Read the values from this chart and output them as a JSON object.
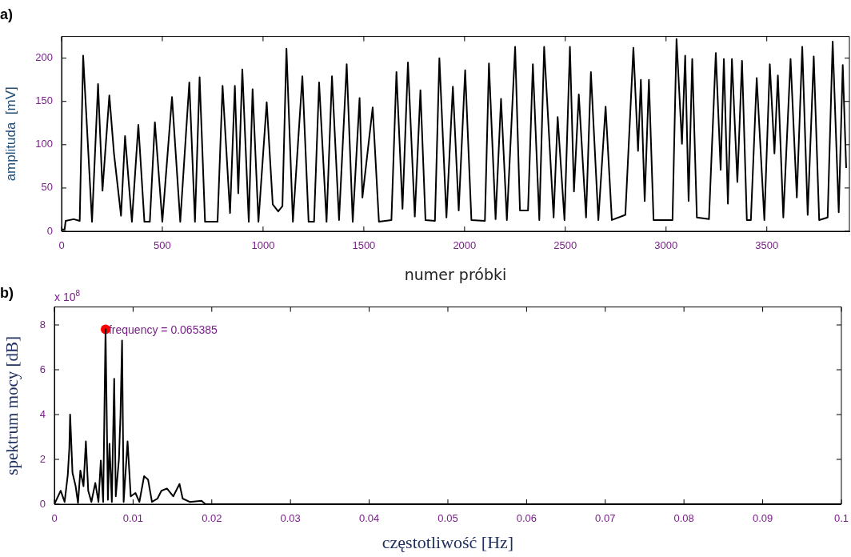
{
  "chart_data": [
    {
      "type": "line",
      "title": "a)",
      "xlabel": "numer próbki",
      "ylabel": "amplituda  [mV]",
      "marker": "none",
      "xlim": [
        0,
        3910
      ],
      "ylim": [
        0,
        225
      ],
      "xticks": [
        0,
        500,
        1000,
        1500,
        2000,
        2500,
        3000,
        3500
      ],
      "yticks": [
        0,
        50,
        100,
        150,
        200
      ],
      "series": [
        {
          "color": "#000000",
          "x": [
            0,
            15,
            20,
            60,
            90,
            107,
            151,
            181,
            203,
            237,
            260,
            295,
            315,
            349,
            381,
            411,
            438,
            463,
            500,
            548,
            589,
            634,
            662,
            685,
            712,
            774,
            799,
            836,
            860,
            877,
            897,
            929,
            948,
            977,
            1018,
            1048,
            1075,
            1096,
            1116,
            1148,
            1195,
            1226,
            1253,
            1278,
            1315,
            1342,
            1377,
            1415,
            1445,
            1479,
            1493,
            1544,
            1575,
            1637,
            1662,
            1692,
            1719,
            1753,
            1781,
            1806,
            1853,
            1875,
            1910,
            1942,
            1971,
            2003,
            2034,
            2101,
            2121,
            2154,
            2181,
            2210,
            2251,
            2275,
            2315,
            2339,
            2371,
            2395,
            2442,
            2462,
            2496,
            2523,
            2543,
            2567,
            2603,
            2627,
            2664,
            2700,
            2731,
            2798,
            2838,
            2861,
            2875,
            2894,
            2915,
            2938,
            3032,
            3052,
            3079,
            3095,
            3112,
            3130,
            3153,
            3213,
            3247,
            3271,
            3287,
            3307,
            3327,
            3354,
            3377,
            3401,
            3421,
            3450,
            3488,
            3515,
            3538,
            3555,
            3582,
            3618,
            3649,
            3676,
            3703,
            3733,
            3760,
            3802,
            3827,
            3857,
            3877,
            3894
          ],
          "values": [
            2,
            2,
            12,
            14,
            12,
            203,
            11,
            170,
            47,
            157,
            90,
            18,
            110,
            11,
            123,
            11,
            11,
            126,
            11,
            155,
            11,
            172,
            11,
            178,
            11,
            11,
            168,
            21,
            168,
            44,
            187,
            11,
            164,
            11,
            149,
            31,
            23,
            29,
            211,
            11,
            179,
            11,
            11,
            172,
            11,
            179,
            13,
            193,
            11,
            154,
            39,
            143,
            11,
            13,
            184,
            26,
            195,
            17,
            163,
            13,
            12,
            200,
            16,
            167,
            24,
            186,
            13,
            12,
            194,
            14,
            153,
            13,
            213,
            24,
            24,
            193,
            13,
            213,
            16,
            132,
            13,
            213,
            46,
            158,
            16,
            184,
            13,
            144,
            13,
            19,
            212,
            93,
            175,
            35,
            175,
            13,
            13,
            222,
            101,
            203,
            35,
            199,
            16,
            14,
            206,
            71,
            199,
            32,
            199,
            57,
            197,
            13,
            13,
            177,
            13,
            193,
            90,
            180,
            16,
            199,
            39,
            213,
            19,
            202,
            13,
            16,
            219,
            22,
            192,
            73
          ]
        }
      ]
    },
    {
      "type": "line",
      "title": "b)",
      "xlabel": "częstotliwość [Hz]",
      "ylabel": "spektrum mocy [dB]",
      "marker": "none",
      "xlim": [
        0,
        0.1
      ],
      "ylim": [
        0,
        8.8
      ],
      "xticks": [
        0,
        0.01,
        0.02,
        0.03,
        0.04,
        0.05,
        0.06,
        0.07,
        0.08,
        0.09,
        0.1
      ],
      "yticks": [
        0,
        2,
        4,
        6,
        8
      ],
      "annotations": [
        "x 10$^{8}$",
        {
          "text": "frequency = 0.065385",
          "x": 0.0065,
          "y": 7.8
        }
      ],
      "series": [
        {
          "color": "#000000",
          "x": [
            0,
            0.0008,
            0.0013,
            0.0017,
            0.0019,
            0.002,
            0.0023,
            0.0027,
            0.003,
            0.0033,
            0.0037,
            0.004,
            0.0043,
            0.0047,
            0.0052,
            0.0056,
            0.0059,
            0.0062,
            0.0065,
            0.0068,
            0.007,
            0.0073,
            0.0076,
            0.0078,
            0.0082,
            0.0084,
            0.0086,
            0.0088,
            0.0093,
            0.0097,
            0.0103,
            0.0108,
            0.0114,
            0.0119,
            0.0124,
            0.0131,
            0.0136,
            0.0143,
            0.0151,
            0.0159,
            0.0163,
            0.0172,
            0.0187,
            0.0192,
            0.03,
            0.06,
            0.1
          ],
          "values": [
            0,
            0.6,
            0.1,
            1.3,
            2.5,
            4.0,
            1.4,
            0.8,
            0.05,
            1.5,
            0.8,
            2.8,
            0.6,
            0.1,
            0.95,
            0.1,
            1.95,
            0.1,
            7.8,
            0.2,
            2.7,
            0.1,
            5.6,
            0.35,
            2.0,
            4.0,
            7.3,
            0.1,
            2.8,
            0.35,
            0.5,
            0.1,
            1.25,
            1.1,
            0.1,
            0.25,
            0.6,
            0.7,
            0.35,
            0.9,
            0.25,
            0.1,
            0.15,
            0,
            0,
            0,
            0
          ]
        },
        {
          "type": "scatter",
          "marker": "circle",
          "color": "#ff0000",
          "x": [
            0.0065
          ],
          "values": [
            7.8
          ]
        }
      ]
    }
  ]
}
